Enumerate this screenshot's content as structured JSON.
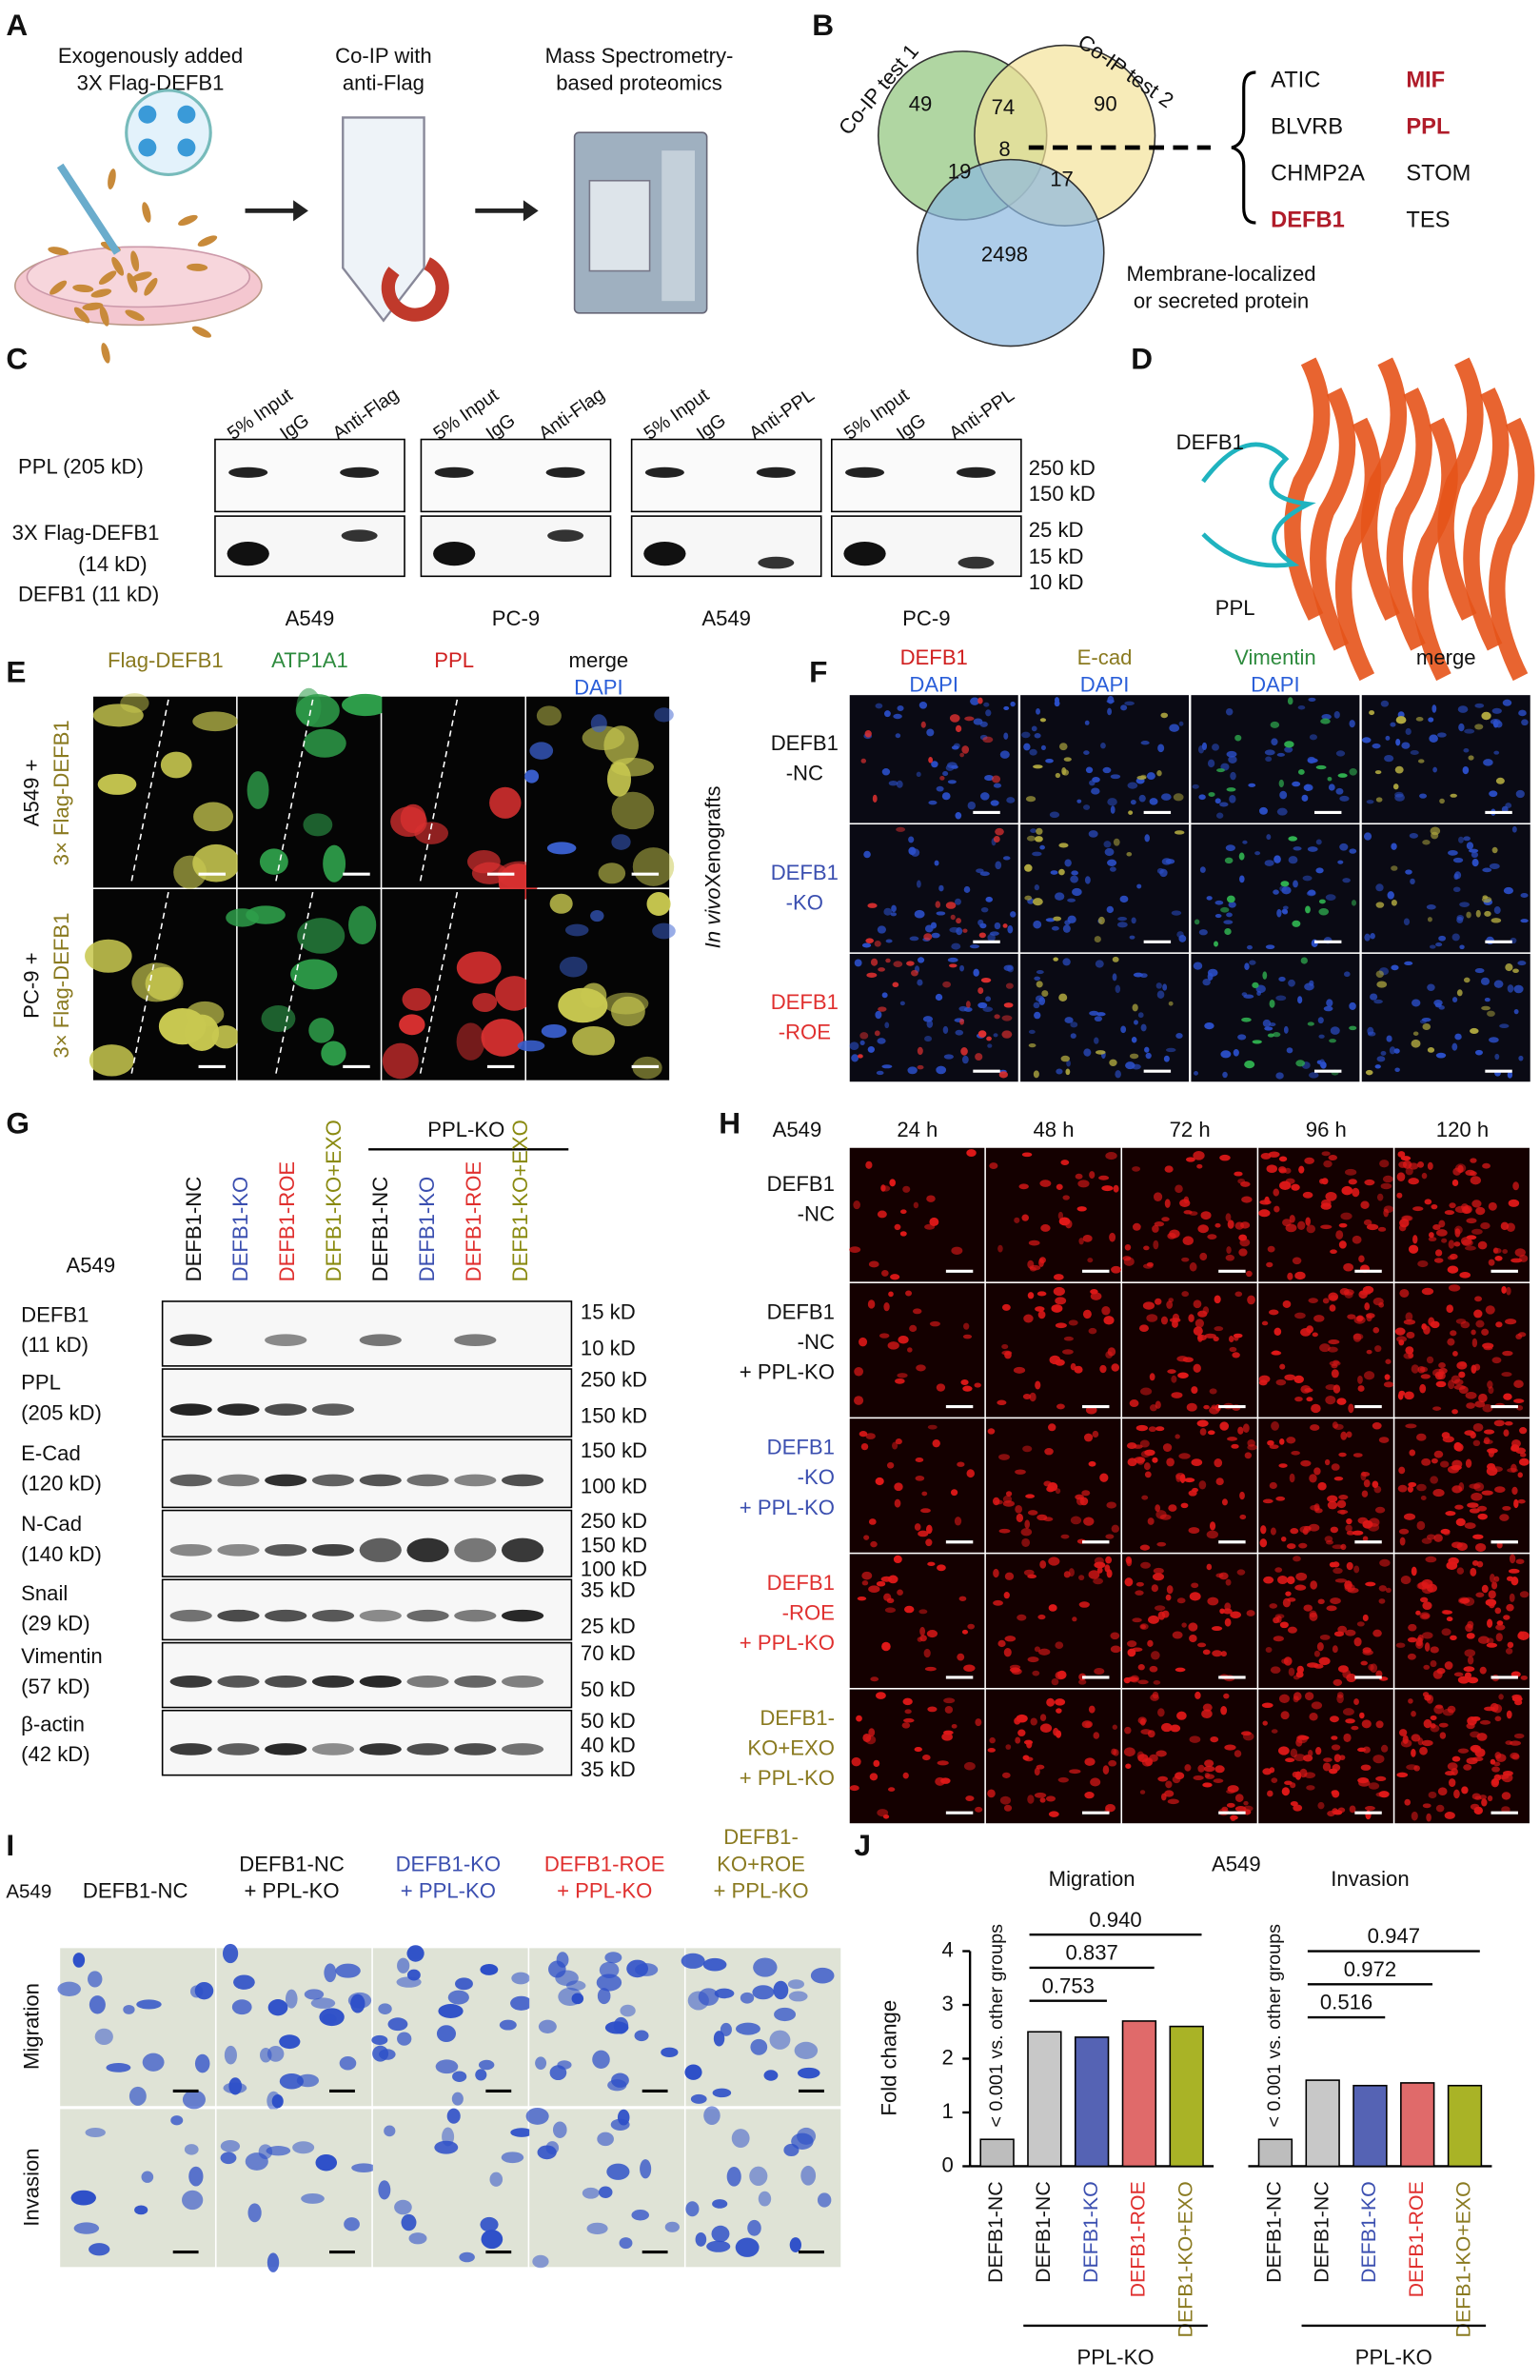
{
  "panels": {
    "A": {
      "label": "A",
      "step1": [
        "Exogenously added",
        "3X Flag-DEFB1"
      ],
      "step2": [
        "Co-IP with",
        "anti-Flag"
      ],
      "step3": [
        "Mass Spectrometry-",
        "based proteomics"
      ]
    },
    "B": {
      "label": "B",
      "set1": "Co-IP test 1",
      "set2": "Co-IP test 2",
      "set3": [
        "Membrane-localized",
        "or secreted protein"
      ],
      "counts": {
        "only1": 49,
        "only2": 90,
        "only3": 2498,
        "s12": 74,
        "s13": 19,
        "s23": 17,
        "all": 8
      },
      "proteins": [
        {
          "name": "ATIC"
        },
        {
          "name": "MIF",
          "highlight": true
        },
        {
          "name": "BLVRB"
        },
        {
          "name": "PPL",
          "highlight": true
        },
        {
          "name": "CHMP2A"
        },
        {
          "name": "STOM"
        },
        {
          "name": "DEFB1",
          "highlight": true
        },
        {
          "name": "TES"
        }
      ]
    },
    "C": {
      "label": "C",
      "blots": [
        {
          "cell": "A549",
          "lanes": [
            "5% Input",
            "IgG",
            "Anti-Flag"
          ]
        },
        {
          "cell": "PC-9",
          "lanes": [
            "5% Input",
            "IgG",
            "Anti-Flag"
          ]
        },
        {
          "cell": "A549",
          "lanes": [
            "5% Input",
            "IgG",
            "Anti-PPL"
          ]
        },
        {
          "cell": "PC-9",
          "lanes": [
            "5% Input",
            "IgG",
            "Anti-PPL"
          ]
        }
      ],
      "rows": [
        "PPL (205 kD)",
        "3X Flag-DEFB1",
        "(14 kD)",
        "DEFB1 (11 kD)"
      ],
      "markers": [
        "250 kD",
        "150 kD",
        "25 kD",
        "15 kD",
        "10 kD"
      ]
    },
    "D": {
      "label": "D",
      "protein1": "DEFB1",
      "protein2": "PPL"
    },
    "E": {
      "label": "E",
      "channels": [
        "Flag-DEFB1",
        "ATP1A1",
        "PPL",
        "merge"
      ],
      "dapi": "DAPI",
      "rows": [
        [
          "A549 +",
          "3× Flag-DEFB1"
        ],
        [
          "PC-9 +",
          "3× Flag-DEFB1"
        ]
      ]
    },
    "F": {
      "label": "F",
      "channels": [
        [
          "DEFB1",
          "DAPI"
        ],
        [
          "E-cad",
          "DAPI"
        ],
        [
          "Vimentin",
          "DAPI"
        ],
        [
          "merge"
        ]
      ],
      "side": [
        "In vivo",
        " Xenografts"
      ],
      "rows": [
        [
          "DEFB1",
          "-NC"
        ],
        [
          "DEFB1",
          "-KO"
        ],
        [
          "DEFB1",
          "-ROE"
        ]
      ]
    },
    "G": {
      "label": "G",
      "cell": "A549",
      "group": "PPL-KO",
      "lanes": [
        "DEFB1-NC",
        "DEFB1-KO",
        "DEFB1-ROE",
        "DEFB1-KO+EXO",
        "DEFB1-NC",
        "DEFB1-KO",
        "DEFB1-ROE",
        "DEFB1-KO+EXO"
      ],
      "rows": [
        {
          "name": [
            "DEFB1",
            "(11 kD)"
          ],
          "markers": [
            "15 kD",
            "10 kD"
          ]
        },
        {
          "name": [
            "PPL",
            "(205 kD)"
          ],
          "markers": [
            "250 kD",
            "150 kD"
          ]
        },
        {
          "name": [
            "E-Cad",
            "(120 kD)"
          ],
          "markers": [
            "150 kD",
            "100 kD"
          ]
        },
        {
          "name": [
            "N-Cad",
            "(140 kD)"
          ],
          "markers": [
            "250 kD",
            "150 kD",
            "100 kD"
          ]
        },
        {
          "name": [
            "Snail",
            "(29 kD)"
          ],
          "markers": [
            "35 kD",
            "25 kD"
          ]
        },
        {
          "name": [
            "Vimentin",
            "(57 kD)"
          ],
          "markers": [
            "70 kD",
            "50 kD"
          ]
        },
        {
          "name": [
            "β-actin",
            "(42 kD)"
          ],
          "markers": [
            "50 kD",
            "40 kD",
            "35 kD"
          ]
        }
      ]
    },
    "H": {
      "label": "H",
      "cell": "A549",
      "times": [
        "24 h",
        "48 h",
        "72 h",
        "96 h",
        "120 h"
      ],
      "rows": [
        [
          "DEFB1",
          "-NC"
        ],
        [
          "DEFB1",
          "-NC",
          "+ PPL-KO"
        ],
        [
          "DEFB1",
          "-KO",
          "+ PPL-KO"
        ],
        [
          "DEFB1",
          "-ROE",
          "+ PPL-KO"
        ],
        [
          "DEFB1-",
          "KO+EXO",
          "+ PPL-KO"
        ]
      ]
    },
    "I": {
      "label": "I",
      "cell": "A549",
      "columns": [
        [
          "DEFB1-NC"
        ],
        [
          "DEFB1-NC",
          "+ PPL-KO"
        ],
        [
          "DEFB1-KO",
          "+ PPL-KO"
        ],
        [
          "DEFB1-ROE",
          "+ PPL-KO"
        ],
        [
          "DEFB1-",
          "KO+ROE",
          "+ PPL-KO"
        ]
      ],
      "rows": [
        "Migration",
        "Invasion"
      ]
    }
  },
  "chart_data": {
    "type": "bar",
    "label": "J",
    "title": "A549",
    "y_label": "Fold change",
    "ylim": [
      0,
      4
    ],
    "yticks": [
      0,
      1,
      2,
      3,
      4
    ],
    "groups": [
      {
        "title": "Migration",
        "categories": [
          "DEFB1-NC",
          "DEFB1-NC",
          "DEFB1-KO",
          "DEFB1-ROE",
          "DEFB1-KO+EXO"
        ],
        "values": [
          0.5,
          2.5,
          2.4,
          2.7,
          2.6
        ],
        "colors": [
          "#bdbdbd",
          "#c8c8c8",
          "#5563b4",
          "#e06a6a",
          "#a9b326"
        ],
        "note": "< 0.001 vs. other groups",
        "comparisons": [
          "0.753",
          "0.837",
          "0.940"
        ],
        "group_label": "PPL-KO"
      },
      {
        "title": "Invasion",
        "categories": [
          "DEFB1-NC",
          "DEFB1-NC",
          "DEFB1-KO",
          "DEFB1-ROE",
          "DEFB1-KO+EXO"
        ],
        "values": [
          0.5,
          1.6,
          1.5,
          1.55,
          1.5
        ],
        "colors": [
          "#bdbdbd",
          "#c8c8c8",
          "#5563b4",
          "#e06a6a",
          "#a9b326"
        ],
        "note": "< 0.001 vs. other groups",
        "comparisons": [
          "0.516",
          "0.972",
          "0.947"
        ],
        "group_label": "PPL-KO"
      }
    ]
  }
}
